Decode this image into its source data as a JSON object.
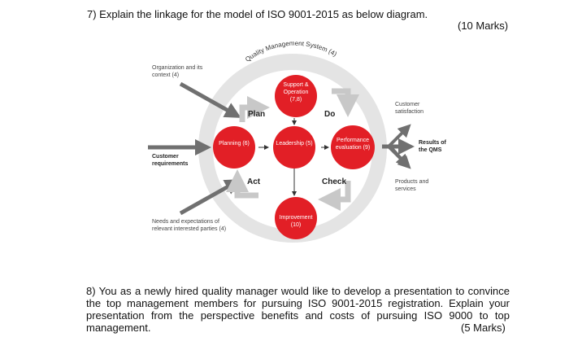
{
  "question7": {
    "text": "7) Explain the linkage for the model of ISO 9001-2015 as below diagram.",
    "marks": "(10 Marks)"
  },
  "diagram": {
    "title": "Quality Management System (4)",
    "inputs": {
      "context": "Organization and its context (4)",
      "requirements": "Customer requirements",
      "needs": "Needs and expectations of relevant interested parties (4)"
    },
    "outputs": {
      "satisfaction": "Customer satisfaction",
      "results": "Results of the QMS",
      "products": "Products and services"
    },
    "cycle": {
      "plan": "Plan",
      "do": "Do",
      "check": "Check",
      "act": "Act"
    },
    "nodes": {
      "support": "Support & Operation (7,8)",
      "planning": "Planning (6)",
      "leadership": "Leadership (5)",
      "performance": "Performance evaluation (9)",
      "improvement": "Improvement (10)"
    }
  },
  "question8": {
    "text": "8) You as a newly hired quality manager would like to develop a presentation to convince the top management members for pursuing ISO 9001-2015 registration. Explain your presentation from the perspective benefits and costs of pursuing ISO 9000 to top management.",
    "marks": "(5 Marks)"
  }
}
